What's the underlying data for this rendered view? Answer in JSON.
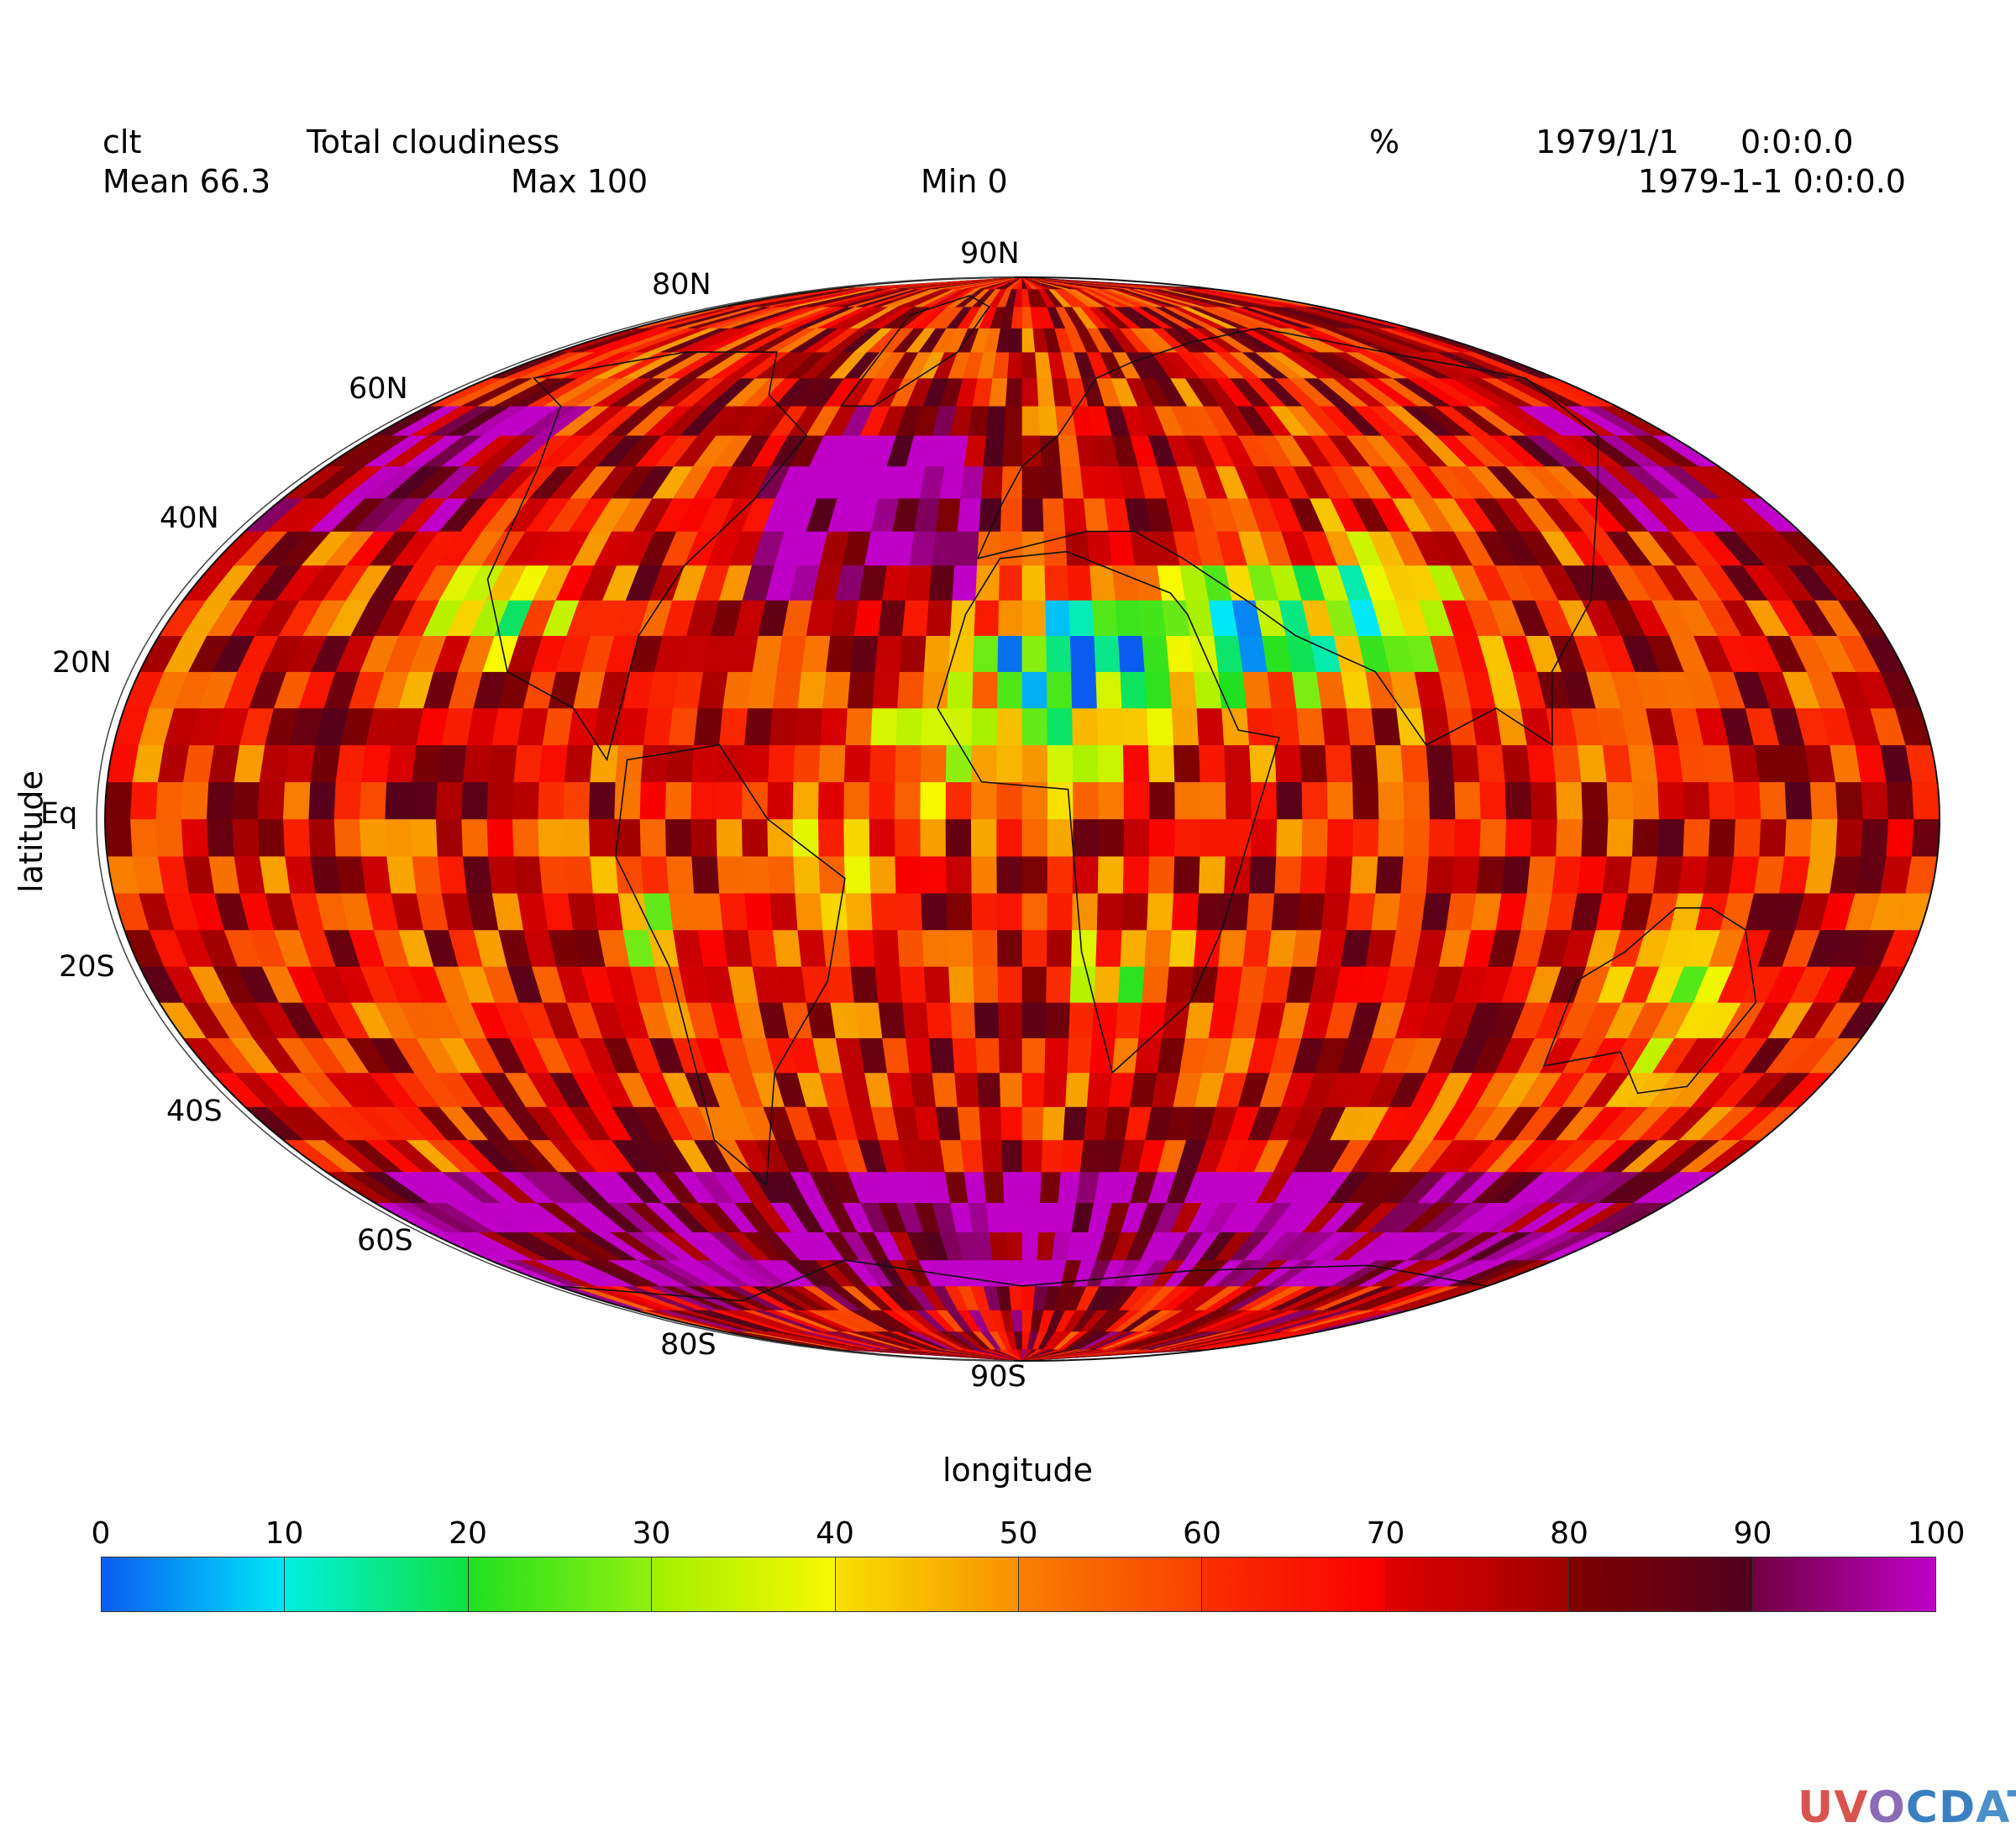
{
  "header": {
    "variable": "clt",
    "long_name": "Total cloudiness",
    "units": "%",
    "date": "1979/1/1",
    "time": "0:0:0.0",
    "datetime": "1979-1-1 0:0:0.0",
    "mean_label": "Mean 66.3",
    "max_label": "Max 100",
    "min_label": "Min 0"
  },
  "axes": {
    "xlabel": "longitude",
    "ylabel": "latitude",
    "top_label": "90N",
    "lat_labels": [
      "80N",
      "60N",
      "40N",
      "20N",
      "Eq",
      "20S",
      "40S",
      "60S",
      "80S",
      "90S"
    ]
  },
  "colorbar": {
    "ticks": [
      "0",
      "10",
      "20",
      "30",
      "40",
      "50",
      "60",
      "70",
      "80",
      "90",
      "100"
    ],
    "segments": [
      [
        "#0a5cf0",
        "#00e8f8"
      ],
      [
        "#00f0e0",
        "#10e040"
      ],
      [
        "#20e020",
        "#90f010"
      ],
      [
        "#a0f000",
        "#f8f800"
      ],
      [
        "#f8e000",
        "#f89000"
      ],
      [
        "#f88000",
        "#f84000"
      ],
      [
        "#f83000",
        "#f80000"
      ],
      [
        "#e00000",
        "#a00000"
      ],
      [
        "#800000",
        "#500020"
      ],
      [
        "#700040",
        "#c000c8"
      ]
    ]
  },
  "chart_data": {
    "type": "heatmap",
    "projection": "mollweide",
    "title": "Total cloudiness",
    "variable": "clt",
    "units": "%",
    "xlabel": "longitude",
    "ylabel": "latitude",
    "value_range": [
      0,
      100
    ],
    "stats": {
      "mean": 66.3,
      "max": 100,
      "min": 0
    },
    "lat_ticks": [
      "80N",
      "60N",
      "40N",
      "20N",
      "Eq",
      "20S",
      "40S",
      "60S",
      "80S",
      "90S"
    ],
    "colorbar_ticks": [
      0,
      10,
      20,
      30,
      40,
      50,
      60,
      70,
      80,
      90,
      100
    ],
    "grid_resolution_deg": [
      5,
      5
    ],
    "features": [
      {
        "region": "Sahara / North Africa",
        "approx_value": 2
      },
      {
        "region": "Southern Ocean (50S-65S)",
        "approx_value": 100
      },
      {
        "region": "North Pacific (40N-60N)",
        "approx_value": 95
      },
      {
        "region": "Tropics",
        "approx_value": 60
      }
    ]
  },
  "logo": {
    "parts": [
      "UV",
      "O",
      "CD",
      "AT"
    ]
  }
}
